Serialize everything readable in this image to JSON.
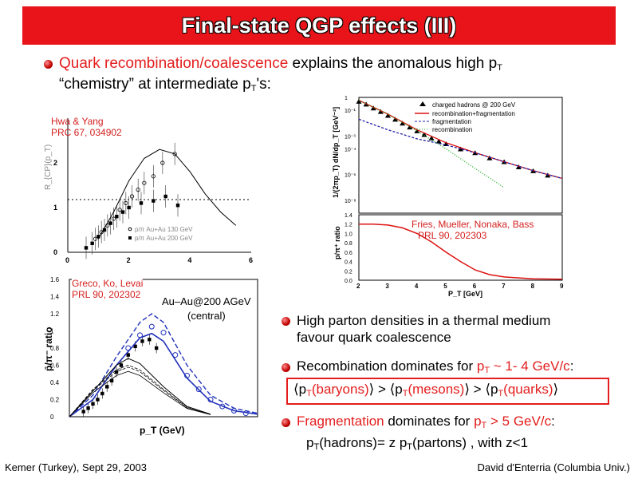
{
  "slide": {
    "title": "Final-state QGP effects (III)",
    "bullet1": {
      "highlight": "Quark recombination/coalescence",
      "rest": " explains the anomalous high p",
      "sub": "T",
      "line2a": "“chemistry” at intermediate p",
      "line2sub": "T",
      "line2b": "'s:"
    },
    "bullets": {
      "b2_line1": "High parton densities in a thermal medium",
      "b2_line2": "favour quark coalescence",
      "b3_text": "Recombination dominates for ",
      "b3_pt": "p",
      "b3_sub": "T",
      "b3_range": " ~ 1- 4 GeV/c",
      "b3_colon": ":",
      "boxed": {
        "open1": "⟨p",
        "s1": "T",
        "t1": "(baryons)",
        "c1": "⟩ > ⟨p",
        "s2": "T",
        "t2": "(mesons)",
        "c2": "⟩ > ⟨p",
        "s3": "T",
        "t3": "(quarks)",
        "c3": "⟩"
      },
      "b4_frag": "Fragmentation",
      "b4_text": " dominates for ",
      "b4_pt": "p",
      "b4_sub": "T",
      "b4_range": " > 5 GeV/c",
      "b4_colon": ":",
      "b4_line2a": "p",
      "b4_line2s1": "T",
      "b4_line2b": "(hadrons)= z p",
      "b4_line2s2": "T",
      "b4_line2c": "(partons) , with z<1"
    },
    "refs": {
      "hwa": [
        "Hwa & Yang",
        "PRC 67, 034902"
      ],
      "greco": [
        "Greco, Ko, Levai",
        "PRL 90, 202302"
      ],
      "fries": [
        "Fries, Mueller, Nonaka, Bass",
        "PRL 90, 202303"
      ]
    },
    "footer": {
      "left": "Kemer (Turkey), Sept 29, 2003",
      "right": "David d'Enterria (Columbia Univ.)"
    },
    "colors": {
      "accent": "#e8141a",
      "red_text": "#e41d1d"
    }
  },
  "chart_data": [
    {
      "type": "scatter",
      "id": "hwa-yang",
      "xlim": [
        0,
        6
      ],
      "ylim": [
        0,
        3
      ],
      "x_ticks": [
        "0",
        "2",
        "4",
        "6"
      ],
      "y_ticks": [
        "0",
        "1",
        "2"
      ],
      "ylabel": "R_{CP}(p_T)",
      "legend": [
        "p/π Au+Au 130 GeV",
        "p/π Au+Au 200 GeV"
      ],
      "series": [
        {
          "name": "p/π Au+Au 130 GeV",
          "marker": "open-circle",
          "x": [
            0.9,
            1.1,
            1.3,
            1.5,
            1.7,
            1.9,
            2.1,
            2.3,
            2.5,
            2.8,
            3.1,
            3.5
          ],
          "y": [
            0.3,
            0.45,
            0.6,
            0.75,
            0.95,
            1.1,
            1.25,
            1.4,
            1.55,
            1.7,
            2.0,
            2.2
          ]
        },
        {
          "name": "p/π Au+Au 200 GeV",
          "marker": "filled-square",
          "x": [
            0.6,
            0.8,
            1.0,
            1.2,
            1.4,
            1.6,
            1.8,
            2.0,
            2.4,
            2.8,
            3.2,
            3.6
          ],
          "y": [
            0.1,
            0.2,
            0.35,
            0.5,
            0.65,
            0.8,
            0.9,
            1.0,
            1.1,
            1.15,
            1.25,
            1.05
          ]
        },
        {
          "name": "",
          "type": "line",
          "x": [
            1.0,
            1.5,
            2.0,
            2.5,
            3.0,
            3.5,
            4.0,
            4.5,
            5.0,
            5.5
          ],
          "y": [
            0.3,
            0.9,
            1.6,
            2.1,
            2.3,
            2.2,
            1.8,
            1.3,
            0.9,
            0.6
          ]
        }
      ],
      "reference_line": 1.0
    },
    {
      "type": "line",
      "id": "greco-ko-levai",
      "annotation_1": "Au–Au@200 AGeV",
      "annotation_2": "(central)",
      "xlabel": "p_T (GeV)",
      "ylabel": "p̄/π⁻ ratio",
      "xlim": [
        0,
        8
      ],
      "ylim": [
        0,
        1.6
      ],
      "y_ticks": [
        "0",
        "0.2",
        "0.4",
        "0.6",
        "0.8",
        "1",
        "1.2",
        "1.4",
        "1.6"
      ],
      "series": [
        {
          "name": "",
          "marker": "filled-square",
          "x": [
            0.6,
            0.8,
            1.0,
            1.2,
            1.4,
            1.6,
            1.8,
            2.0,
            2.2,
            2.5,
            2.8,
            3.1,
            3.4,
            3.7
          ],
          "y": [
            0.06,
            0.1,
            0.15,
            0.2,
            0.27,
            0.35,
            0.42,
            0.52,
            0.6,
            0.72,
            0.82,
            0.88,
            0.9,
            0.8
          ]
        },
        {
          "name": "",
          "marker": "open-circle",
          "x": [
            2.5,
            3.0,
            3.5,
            4.0,
            4.5,
            5.0,
            5.5,
            6.0,
            6.5,
            7.0,
            7.5
          ],
          "y": [
            0.8,
            0.95,
            1.05,
            0.98,
            0.72,
            0.48,
            0.32,
            0.2,
            0.12,
            0.07,
            0.04
          ]
        },
        {
          "name": "",
          "type": "line",
          "style": "dashed-blue",
          "x": [
            0,
            1,
            2,
            3,
            3.5,
            4,
            5,
            6,
            7,
            8
          ],
          "y": [
            0.0,
            0.25,
            0.7,
            1.1,
            1.2,
            1.1,
            0.6,
            0.25,
            0.1,
            0.04
          ]
        },
        {
          "name": "",
          "type": "line",
          "style": "solid-blue",
          "x": [
            0,
            1,
            2,
            3,
            3.5,
            4,
            5,
            6,
            7,
            8
          ],
          "y": [
            0.0,
            0.2,
            0.6,
            0.92,
            0.97,
            0.88,
            0.45,
            0.18,
            0.07,
            0.03
          ]
        },
        {
          "name": "",
          "type": "line",
          "style": "black",
          "x": [
            0,
            1,
            2,
            2.5,
            3,
            4,
            5,
            6
          ],
          "y": [
            0.0,
            0.3,
            0.6,
            0.68,
            0.62,
            0.35,
            0.12,
            0.03
          ]
        }
      ]
    },
    {
      "type": "scatter",
      "id": "fries-spectrum",
      "yscale": "log",
      "xlim": [
        2,
        9
      ],
      "ylim": [
        1e-09,
        1
      ],
      "ylabel": "1/(2πp_T) dN/dp_T [GeV⁻²]",
      "y_ticks": [
        "1",
        "10⁻¹",
        "10⁻³",
        "10⁻⁴",
        "10⁻⁶",
        "10⁻⁸"
      ],
      "legend": [
        "charged hadrons @ 200 GeV",
        "recombination+fragmentation",
        "fragmentation",
        "recombination"
      ],
      "series": [
        {
          "name": "charged hadrons @ 200 GeV",
          "marker": "filled-triangle",
          "x": [
            2.0,
            2.25,
            2.5,
            2.75,
            3.0,
            3.25,
            3.5,
            3.75,
            4.0,
            4.25,
            4.5,
            4.75,
            5.0,
            5.5,
            6.0,
            6.5,
            7.0,
            7.5,
            8.0,
            8.5
          ],
          "y": [
            0.5,
            0.3,
            0.15,
            0.08,
            0.04,
            0.02,
            0.01,
            0.005,
            0.0025,
            0.0013,
            0.0007,
            0.0004,
            0.00025,
            0.0001,
            5e-05,
            2e-05,
            1e-05,
            4e-06,
            2e-06,
            9e-07
          ]
        },
        {
          "name": "recombination+fragmentation",
          "type": "line",
          "color": "#d11",
          "x": [
            2,
            3,
            4,
            5,
            6,
            7,
            8,
            9
          ],
          "y": [
            0.6,
            0.05,
            0.003,
            0.0003,
            5e-05,
            1e-05,
            2e-06,
            5e-07
          ]
        },
        {
          "name": "fragmentation",
          "type": "line",
          "color": "#22a",
          "x": [
            2,
            3,
            4,
            5,
            6,
            7,
            8,
            9
          ],
          "y": [
            0.02,
            0.003,
            0.0006,
            0.0002,
            5e-05,
            1e-05,
            2e-06,
            5e-07
          ]
        },
        {
          "name": "recombination",
          "type": "line",
          "color": "#2a2",
          "x": [
            2,
            3,
            4,
            5,
            6,
            7
          ],
          "y": [
            0.6,
            0.05,
            0.0025,
            0.0001,
            3e-06,
            1e-07
          ]
        }
      ]
    },
    {
      "type": "line",
      "id": "fries-ratio",
      "xlabel": "P_T [GeV]",
      "ylabel": "p/π⁺ ratio",
      "xlim": [
        2,
        9
      ],
      "ylim": [
        0,
        1.4
      ],
      "x_ticks": [
        "2",
        "3",
        "4",
        "5",
        "6",
        "7",
        "8",
        "9"
      ],
      "y_ticks": [
        "0.0",
        "0.2",
        "0.4",
        "0.6",
        "0.8",
        "1.0",
        "1.2",
        "1.4"
      ],
      "series": [
        {
          "name": "",
          "color": "#d11",
          "x": [
            2.0,
            2.5,
            3.0,
            3.5,
            4.0,
            4.5,
            5.0,
            5.5,
            6.0,
            6.5,
            7.0,
            8.0,
            9.0
          ],
          "y": [
            1.2,
            1.2,
            1.18,
            1.12,
            1.0,
            0.82,
            0.6,
            0.4,
            0.22,
            0.12,
            0.07,
            0.03,
            0.02
          ]
        }
      ]
    }
  ]
}
